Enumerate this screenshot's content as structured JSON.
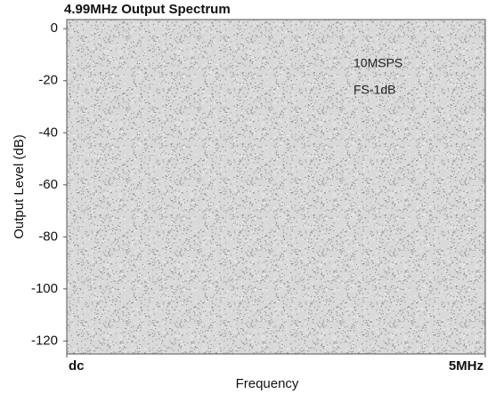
{
  "chart_data": {
    "type": "line",
    "title": "4.99MHz Output Spectrum",
    "xlabel": "Frequency",
    "ylabel": "Output Level (dB)",
    "xlim": [
      0,
      5
    ],
    "xticks": [
      {
        "value": 0,
        "label": "dc"
      },
      {
        "value": 5,
        "label": "5MHz"
      }
    ],
    "ylim": [
      -125,
      3.5
    ],
    "yticks": [
      0,
      -20,
      -40,
      -60,
      -80,
      -100,
      -120
    ],
    "annotations": [
      "10MSPS",
      "FS-1dB"
    ]
  }
}
